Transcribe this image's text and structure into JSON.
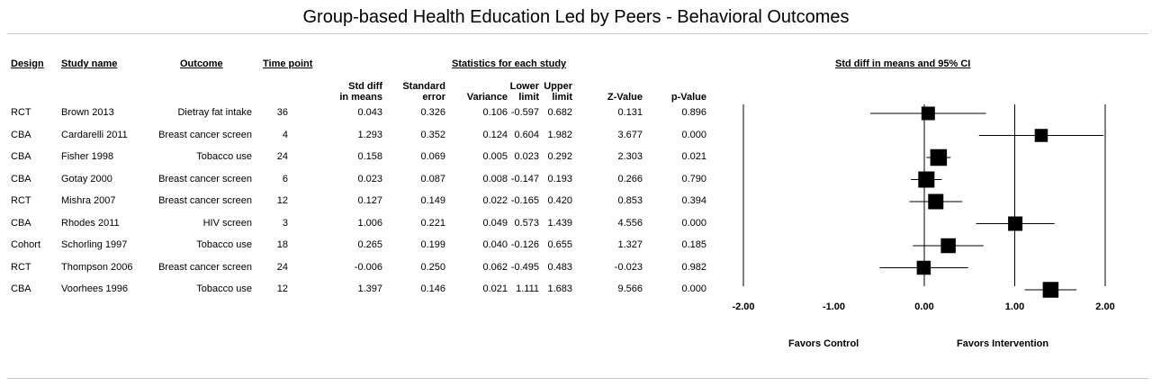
{
  "title": "Group-based Health Education Led by Peers - Behavioral Outcomes",
  "headers": {
    "design": "Design",
    "study": "Study name",
    "outcome": "Outcome",
    "timepoint": "Time point",
    "stats_group": "Statistics for each study",
    "plot_group": "Std diff in means and 95% CI"
  },
  "subheaders": {
    "smd": [
      "Std diff",
      "in means"
    ],
    "se": [
      "Standard",
      "error"
    ],
    "variance": [
      "",
      "Variance"
    ],
    "lower": [
      "Lower",
      "limit"
    ],
    "upper": [
      "Upper",
      "limit"
    ],
    "z": [
      "",
      "Z-Value"
    ],
    "p": [
      "",
      "p-Value"
    ]
  },
  "favors": {
    "left": "Favors Control",
    "right": "Favors Intervention"
  },
  "chart_data": {
    "type": "forest",
    "xlim": [
      -2,
      2
    ],
    "ticks": [
      "-2.00",
      "-1.00",
      "0.00",
      "1.00",
      "2.00"
    ],
    "tick_values": [
      -2,
      -1,
      0,
      1,
      2
    ],
    "rows": [
      {
        "design": "RCT",
        "study": "Brown 2013",
        "outcome": "Dietray fat intake",
        "timepoint": "36",
        "smd": "0.043",
        "se": "0.326",
        "variance": "0.106",
        "lower": "-0.597",
        "upper": "0.682",
        "z": "0.131",
        "p": "0.896",
        "weight": 0.5
      },
      {
        "design": "CBA",
        "study": "Cardarelli 2011",
        "outcome": "Breast cancer screen",
        "timepoint": "4",
        "smd": "1.293",
        "se": "0.352",
        "variance": "0.124",
        "lower": "0.604",
        "upper": "1.982",
        "z": "3.677",
        "p": "0.000",
        "weight": 0.45
      },
      {
        "design": "CBA",
        "study": "Fisher 1998",
        "outcome": "Tobacco use",
        "timepoint": "24",
        "smd": "0.158",
        "se": "0.069",
        "variance": "0.005",
        "lower": "0.023",
        "upper": "0.292",
        "z": "2.303",
        "p": "0.021",
        "weight": 0.85
      },
      {
        "design": "CBA",
        "study": "Gotay 2000",
        "outcome": "Breast cancer screen",
        "timepoint": "6",
        "smd": "0.023",
        "se": "0.087",
        "variance": "0.008",
        "lower": "-0.147",
        "upper": "0.193",
        "z": "0.266",
        "p": "0.790",
        "weight": 0.8
      },
      {
        "design": "RCT",
        "study": "Mishra 2007",
        "outcome": "Breast cancer screen",
        "timepoint": "12",
        "smd": "0.127",
        "se": "0.149",
        "variance": "0.022",
        "lower": "-0.165",
        "upper": "0.420",
        "z": "0.853",
        "p": "0.394",
        "weight": 0.7
      },
      {
        "design": "CBA",
        "study": "Rhodes 2011",
        "outcome": "HIV screen",
        "timepoint": "3",
        "smd": "1.006",
        "se": "0.221",
        "variance": "0.049",
        "lower": "0.573",
        "upper": "1.439",
        "z": "4.556",
        "p": "0.000",
        "weight": 0.6
      },
      {
        "design": "Cohort",
        "study": "Schorling 1997",
        "outcome": "Tobacco use",
        "timepoint": "18",
        "smd": "0.265",
        "se": "0.199",
        "variance": "0.040",
        "lower": "-0.126",
        "upper": "0.655",
        "z": "1.327",
        "p": "0.185",
        "weight": 0.65
      },
      {
        "design": "RCT",
        "study": "Thompson 2006",
        "outcome": "Breast cancer screen",
        "timepoint": "24",
        "smd": "-0.006",
        "se": "0.250",
        "variance": "0.062",
        "lower": "-0.495",
        "upper": "0.483",
        "z": "-0.023",
        "p": "0.982",
        "weight": 0.55
      },
      {
        "design": "CBA",
        "study": "Voorhees 1996",
        "outcome": "Tobacco use",
        "timepoint": "12",
        "smd": "1.397",
        "se": "0.146",
        "variance": "0.021",
        "lower": "1.111",
        "upper": "1.683",
        "z": "9.566",
        "p": "0.000",
        "weight": 0.75
      }
    ]
  }
}
